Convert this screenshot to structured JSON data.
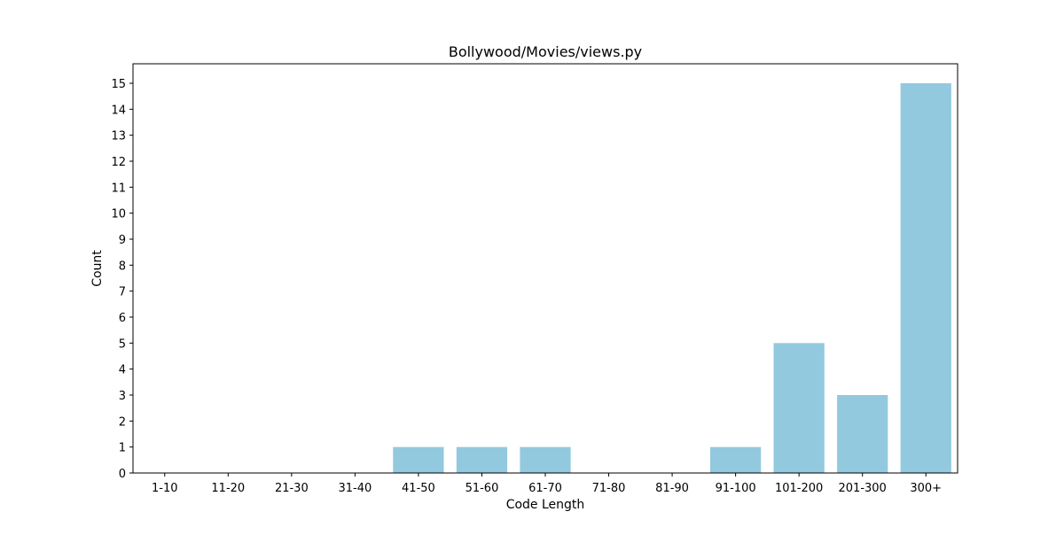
{
  "chart_data": {
    "type": "bar",
    "title": "Bollywood/Movies/views.py",
    "xlabel": "Code Length",
    "ylabel": "Count",
    "categories": [
      "1-10",
      "11-20",
      "21-30",
      "31-40",
      "41-50",
      "51-60",
      "61-70",
      "71-80",
      "81-90",
      "91-100",
      "101-200",
      "201-300",
      "300+"
    ],
    "values": [
      0,
      0,
      0,
      0,
      1,
      1,
      1,
      0,
      0,
      1,
      5,
      3,
      15
    ],
    "ylim": [
      0,
      15.75
    ],
    "yticks": [
      0,
      1,
      2,
      3,
      4,
      5,
      6,
      7,
      8,
      9,
      10,
      11,
      12,
      13,
      14,
      15
    ],
    "grid": false,
    "legend": "none",
    "bar_color": "#92c9de"
  }
}
